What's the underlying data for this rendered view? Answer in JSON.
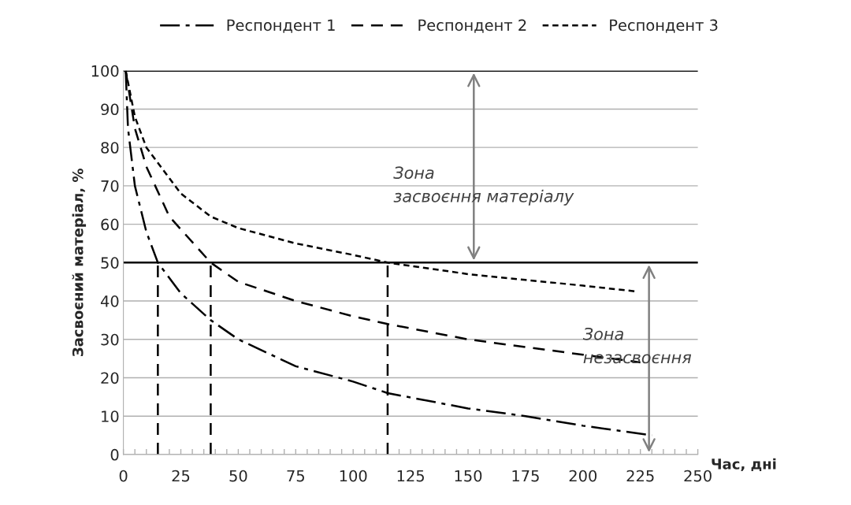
{
  "chart_data": {
    "type": "line",
    "xlabel": "Час, дні",
    "ylabel": "Засвоєний матеріал, %",
    "xlim": [
      0,
      250
    ],
    "ylim": [
      0,
      100
    ],
    "xticks": [
      0,
      {
        "value": 5,
        "label": null
      },
      {
        "value": 10,
        "label": null
      },
      {
        "value": 15,
        "label": null
      },
      {
        "value": 20,
        "label": null
      },
      25,
      {
        "value": 30,
        "label": null
      },
      {
        "value": 35,
        "label": null
      },
      {
        "value": 40,
        "label": null
      },
      {
        "value": 45,
        "label": null
      },
      50,
      {
        "value": 55,
        "label": null
      },
      {
        "value": 60,
        "label": null
      },
      {
        "value": 65,
        "label": null
      },
      {
        "value": 70,
        "label": null
      },
      75,
      {
        "value": 80,
        "label": null
      },
      {
        "value": 85,
        "label": null
      },
      {
        "value": 90,
        "label": null
      },
      {
        "value": 95,
        "label": null
      },
      100,
      {
        "value": 105,
        "label": null
      },
      {
        "value": 110,
        "label": null
      },
      {
        "value": 115,
        "label": null
      },
      {
        "value": 120,
        "label": null
      },
      125,
      {
        "value": 130,
        "label": null
      },
      {
        "value": 135,
        "label": null
      },
      {
        "value": 140,
        "label": null
      },
      {
        "value": 145,
        "label": null
      },
      150,
      {
        "value": 155,
        "label": null
      },
      {
        "value": 160,
        "label": null
      },
      {
        "value": 165,
        "label": null
      },
      {
        "value": 170,
        "label": null
      },
      175,
      {
        "value": 180,
        "label": null
      },
      {
        "value": 185,
        "label": null
      },
      {
        "value": 190,
        "label": null
      },
      {
        "value": 195,
        "label": null
      },
      200,
      {
        "value": 205,
        "label": null
      },
      {
        "value": 210,
        "label": null
      },
      {
        "value": 215,
        "label": null
      },
      {
        "value": 220,
        "label": null
      },
      225,
      {
        "value": 230,
        "label": null
      },
      {
        "value": 235,
        "label": null
      },
      {
        "value": 240,
        "label": null
      },
      {
        "value": 245,
        "label": null
      },
      250
    ],
    "yticks": [
      0,
      10,
      20,
      30,
      40,
      50,
      60,
      70,
      80,
      90,
      100
    ],
    "grid": "y",
    "legend": "top",
    "series": [
      {
        "name": "Респондент 1",
        "color": "#000000",
        "line_style": "dashdot",
        "x": [
          1,
          2,
          5,
          10,
          15,
          25,
          38,
          50,
          75,
          100,
          115,
          150,
          175,
          200,
          230
        ],
        "values": [
          100,
          85,
          70,
          58,
          50,
          42,
          35,
          30,
          23,
          19,
          16,
          12,
          10,
          7.5,
          5
        ]
      },
      {
        "name": "Респондент 2",
        "color": "#000000",
        "line_style": "dashed",
        "x": [
          1,
          5,
          10,
          20,
          38,
          50,
          75,
          100,
          115,
          150,
          175,
          200,
          225
        ],
        "values": [
          100,
          85,
          75,
          62,
          50,
          45,
          40,
          36,
          34,
          30,
          28,
          26,
          24
        ]
      },
      {
        "name": "Респондент 3",
        "color": "#000000",
        "line_style": "dotted",
        "x": [
          1,
          5,
          10,
          25,
          38,
          50,
          75,
          100,
          115,
          150,
          175,
          200,
          223
        ],
        "values": [
          100,
          88,
          80,
          68,
          62,
          59,
          55,
          52,
          50,
          47,
          45.5,
          44,
          42.5
        ]
      },
      {
        "color": "#000000",
        "line_style": "dashed",
        "x": [
          15,
          15
        ],
        "values": [
          0,
          50
        ]
      },
      {
        "color": "#000000",
        "line_style": "dashed",
        "x": [
          38,
          38
        ],
        "values": [
          0,
          50
        ]
      },
      {
        "color": "#000000",
        "line_style": "dashed",
        "x": [
          115,
          115
        ],
        "values": [
          0,
          50
        ]
      }
    ],
    "ref_lines": [
      {
        "axis": "y",
        "value": 100,
        "color": "#000000",
        "line_style": "solid"
      },
      {
        "axis": "y",
        "value": 50,
        "color": "#000000",
        "line_style": "solid"
      }
    ],
    "annotations": [
      "Зона\nзасвоєння матеріалу",
      "Зона\nнезасвоєння"
    ]
  }
}
